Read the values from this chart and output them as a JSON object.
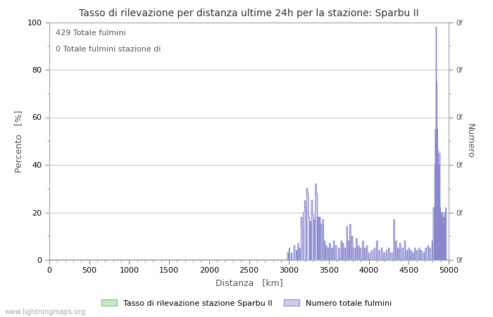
{
  "title": "Tasso di rilevazione per distanza ultime 24h per la stazione: Sparbu II",
  "xlabel": "Distanza   [km]",
  "ylabel_left": "Percento   [%]",
  "ylabel_right": "Numero",
  "annotation_line1": "429 Totale fulmini",
  "annotation_line2": "0 Totale fulmini stazione di",
  "xlim": [
    0,
    5000
  ],
  "ylim_left": [
    0,
    100
  ],
  "xticks": [
    0,
    500,
    1000,
    1500,
    2000,
    2500,
    3000,
    3500,
    4000,
    4500,
    5000
  ],
  "yticks_left": [
    0,
    20,
    40,
    60,
    80,
    100
  ],
  "right_tick_label": "0f",
  "legend_label_green": "Tasso di rilevazione stazione Sparbu II",
  "legend_label_blue": "Numero totale fulmini",
  "watermark": "www.lightningmaps.org",
  "bg_color": "#ffffff",
  "plot_bg_color": "#ffffff",
  "grid_color": "#cccccc",
  "line_color": "#8888cc",
  "fill_color": "#ccccee",
  "green_fill_color": "#c8e6c8",
  "green_line_color": "#88bb88",
  "tick_color": "#888888",
  "label_color": "#555555",
  "title_color": "#333333"
}
